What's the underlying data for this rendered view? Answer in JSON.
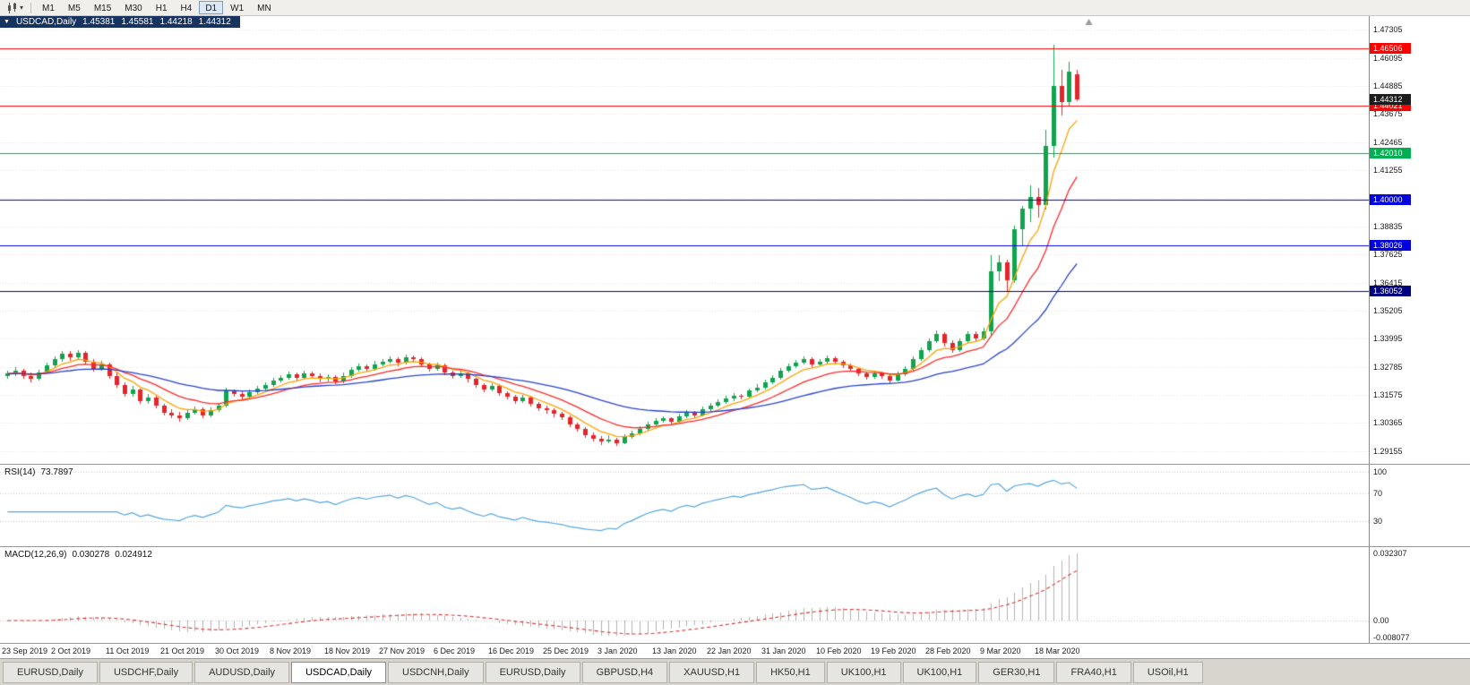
{
  "toolbar": {
    "timeframes": [
      "M1",
      "M5",
      "M15",
      "M30",
      "H1",
      "H4",
      "D1",
      "W1",
      "MN"
    ],
    "active_timeframe": "D1"
  },
  "chart": {
    "symbol_timeframe": "USDCAD,Daily",
    "ohlc": {
      "open": "1.45381",
      "high": "1.45581",
      "low": "1.44218",
      "close": "1.44312"
    }
  },
  "indicators": {
    "rsi": {
      "name": "RSI(14)",
      "value": "73.7897"
    },
    "macd": {
      "name": "MACD(12,26,9)",
      "main_value": "0.030278",
      "signal_value": "0.024912"
    }
  },
  "colors": {
    "up": "#12A34F",
    "down": "#E3262B",
    "grid": "#E4E4E4",
    "current_label_bg": "#1b1b1b",
    "axis_text": "#1a1a1a"
  },
  "tabs": {
    "active_index": 3,
    "items": [
      "EURUSD,Daily",
      "USDCHF,Daily",
      "AUDUSD,Daily",
      "USDCAD,Daily",
      "USDCNH,Daily",
      "EURUSD,Daily",
      "GBPUSD,H4",
      "XAUUSD,H1",
      "HK50,H1",
      "UK100,H1",
      "UK100,H1",
      "GER30,H1",
      "FRA40,H1",
      "USOil,H1"
    ]
  },
  "chart_data": {
    "type": "candlestick",
    "symbol": "USDCAD",
    "timeframe": "Daily",
    "current_price": "1.44312",
    "price_range": [
      1.286,
      1.479
    ],
    "right_offset_fraction": 0.787,
    "label_every": 7,
    "x_labels": [
      "23 Sep 2019",
      "2 Oct 2019",
      "11 Oct 2019",
      "21 Oct 2019",
      "30 Oct 2019",
      "8 Nov 2019",
      "18 Nov 2019",
      "27 Nov 2019",
      "6 Dec 2019",
      "16 Dec 2019",
      "25 Dec 2019",
      "3 Jan 2020",
      "13 Jan 2020",
      "22 Jan 2020",
      "31 Jan 2020",
      "10 Feb 2020",
      "19 Feb 2020",
      "28 Feb 2020",
      "9 Mar 2020",
      "18 Mar 2020"
    ],
    "price_axis_ticks": [
      "1.47305",
      "1.46095",
      "1.44885",
      "1.43675",
      "1.42465",
      "1.41255",
      "1.40045",
      "1.38835",
      "1.37625",
      "1.36415",
      "1.35205",
      "1.33995",
      "1.32785",
      "1.31575",
      "1.30365",
      "1.29155"
    ],
    "hlines": [
      {
        "value": 1.46506,
        "label": "1.46506",
        "color": "#FF0000"
      },
      {
        "value": 1.44021,
        "label": "1.44021",
        "color": "#FF0000"
      },
      {
        "value": 1.4201,
        "label": "1.42010",
        "color": "#00B050"
      },
      {
        "value": 1.4,
        "label": "1.40000",
        "color": "#0000E0"
      },
      {
        "value": 1.38026,
        "label": "1.38026",
        "color": "#0000E0"
      },
      {
        "value": 1.36052,
        "label": "1.36052",
        "color": "#000080"
      }
    ],
    "moving_averages": [
      {
        "name": "ma-fast",
        "period": 6,
        "color": "#FFA200"
      },
      {
        "name": "ma-mid",
        "period": 13,
        "color": "#FF2A2A"
      },
      {
        "name": "ma-slow",
        "period": 34,
        "color": "#2743D0"
      }
    ],
    "rsi": {
      "period": 14,
      "levels": [
        100,
        70,
        30
      ],
      "color": "#56A5DB",
      "scale_max": 105
    },
    "macd": {
      "fast": 12,
      "slow": 26,
      "signal": 9,
      "axis_labels": {
        "top": "0.032307",
        "zero": "0.00",
        "bottom": "-0.008077"
      },
      "histogram_color": "#B2B2B2",
      "signal_color": "#D83838"
    },
    "candles": [
      [
        1.324,
        1.3262,
        1.3228,
        1.3248
      ],
      [
        1.3248,
        1.3275,
        1.324,
        1.3262
      ],
      [
        1.3262,
        1.3268,
        1.3225,
        1.324
      ],
      [
        1.324,
        1.3252,
        1.3212,
        1.3228
      ],
      [
        1.3228,
        1.3266,
        1.322,
        1.3255
      ],
      [
        1.3255,
        1.3298,
        1.3248,
        1.3285
      ],
      [
        1.3285,
        1.3322,
        1.3278,
        1.331
      ],
      [
        1.331,
        1.3348,
        1.33,
        1.3335
      ],
      [
        1.3335,
        1.3345,
        1.3305,
        1.332
      ],
      [
        1.332,
        1.3352,
        1.331,
        1.334
      ],
      [
        1.334,
        1.3347,
        1.3288,
        1.33
      ],
      [
        1.33,
        1.3312,
        1.3258,
        1.327
      ],
      [
        1.327,
        1.3302,
        1.3262,
        1.329
      ],
      [
        1.329,
        1.3296,
        1.3228,
        1.324
      ],
      [
        1.324,
        1.3252,
        1.3188,
        1.32
      ],
      [
        1.32,
        1.3212,
        1.3148,
        1.316
      ],
      [
        1.316,
        1.3195,
        1.315,
        1.318
      ],
      [
        1.318,
        1.3186,
        1.3118,
        1.313
      ],
      [
        1.313,
        1.316,
        1.312,
        1.3145
      ],
      [
        1.3145,
        1.3152,
        1.3098,
        1.311
      ],
      [
        1.311,
        1.3118,
        1.3068,
        1.308
      ],
      [
        1.308,
        1.3095,
        1.3055,
        1.307
      ],
      [
        1.307,
        1.3082,
        1.3042,
        1.3055
      ],
      [
        1.3055,
        1.3092,
        1.3048,
        1.308
      ],
      [
        1.308,
        1.3108,
        1.3072,
        1.3095
      ],
      [
        1.3095,
        1.3102,
        1.3058,
        1.307
      ],
      [
        1.307,
        1.3102,
        1.3062,
        1.309
      ],
      [
        1.309,
        1.3122,
        1.3082,
        1.311
      ],
      [
        1.311,
        1.3188,
        1.3102,
        1.3175
      ],
      [
        1.3175,
        1.3182,
        1.3148,
        1.316
      ],
      [
        1.316,
        1.3172,
        1.3138,
        1.315
      ],
      [
        1.315,
        1.3182,
        1.3142,
        1.317
      ],
      [
        1.317,
        1.3196,
        1.3162,
        1.3185
      ],
      [
        1.3185,
        1.3212,
        1.3178,
        1.32
      ],
      [
        1.32,
        1.3232,
        1.3192,
        1.322
      ],
      [
        1.322,
        1.3242,
        1.3212,
        1.323
      ],
      [
        1.323,
        1.3256,
        1.3222,
        1.3245
      ],
      [
        1.3245,
        1.3252,
        1.3218,
        1.323
      ],
      [
        1.323,
        1.3262,
        1.3222,
        1.325
      ],
      [
        1.325,
        1.3256,
        1.3228,
        1.324
      ],
      [
        1.324,
        1.3248,
        1.3212,
        1.3225
      ],
      [
        1.3225,
        1.3246,
        1.3216,
        1.3235
      ],
      [
        1.3235,
        1.3242,
        1.3202,
        1.3215
      ],
      [
        1.3215,
        1.3252,
        1.3208,
        1.324
      ],
      [
        1.324,
        1.3276,
        1.3232,
        1.3265
      ],
      [
        1.3265,
        1.3292,
        1.3258,
        1.328
      ],
      [
        1.328,
        1.3288,
        1.3256,
        1.327
      ],
      [
        1.327,
        1.3302,
        1.3262,
        1.329
      ],
      [
        1.329,
        1.3312,
        1.3282,
        1.33
      ],
      [
        1.33,
        1.3322,
        1.3292,
        1.331
      ],
      [
        1.331,
        1.3318,
        1.3282,
        1.3295
      ],
      [
        1.3295,
        1.3332,
        1.3288,
        1.332
      ],
      [
        1.332,
        1.3328,
        1.3298,
        1.331
      ],
      [
        1.331,
        1.3318,
        1.3278,
        1.329
      ],
      [
        1.329,
        1.3298,
        1.3258,
        1.327
      ],
      [
        1.327,
        1.3298,
        1.3262,
        1.3285
      ],
      [
        1.3285,
        1.3292,
        1.3242,
        1.3255
      ],
      [
        1.3255,
        1.3262,
        1.3228,
        1.324
      ],
      [
        1.324,
        1.3262,
        1.3232,
        1.325
      ],
      [
        1.325,
        1.3256,
        1.3212,
        1.3225
      ],
      [
        1.3225,
        1.3232,
        1.3188,
        1.32
      ],
      [
        1.32,
        1.3208,
        1.3168,
        1.318
      ],
      [
        1.318,
        1.3208,
        1.3172,
        1.3195
      ],
      [
        1.3195,
        1.3202,
        1.3152,
        1.3165
      ],
      [
        1.3165,
        1.3172,
        1.3138,
        1.315
      ],
      [
        1.315,
        1.3158,
        1.3118,
        1.313
      ],
      [
        1.313,
        1.3158,
        1.3122,
        1.3145
      ],
      [
        1.3145,
        1.3152,
        1.3108,
        1.312
      ],
      [
        1.312,
        1.3128,
        1.3088,
        1.31
      ],
      [
        1.31,
        1.3112,
        1.3078,
        1.309
      ],
      [
        1.309,
        1.3098,
        1.3062,
        1.3075
      ],
      [
        1.3075,
        1.3082,
        1.3048,
        1.306
      ],
      [
        1.306,
        1.3068,
        1.3018,
        1.303
      ],
      [
        1.303,
        1.3038,
        1.2998,
        1.301
      ],
      [
        1.301,
        1.3018,
        1.2972,
        1.2985
      ],
      [
        1.2985,
        1.2995,
        1.2958,
        1.297
      ],
      [
        1.297,
        1.2978,
        1.2942,
        1.2955
      ],
      [
        1.2955,
        1.2982,
        1.2948,
        1.2965
      ],
      [
        1.2965,
        1.2972,
        1.2938,
        1.295
      ],
      [
        1.295,
        1.2988,
        1.2944,
        1.2975
      ],
      [
        1.2975,
        1.3002,
        1.2968,
        1.299
      ],
      [
        1.299,
        1.3022,
        1.2984,
        1.301
      ],
      [
        1.301,
        1.3042,
        1.3002,
        1.303
      ],
      [
        1.303,
        1.3056,
        1.3022,
        1.3045
      ],
      [
        1.3045,
        1.3066,
        1.3038,
        1.3055
      ],
      [
        1.3055,
        1.3062,
        1.3028,
        1.304
      ],
      [
        1.304,
        1.3076,
        1.3034,
        1.3065
      ],
      [
        1.3065,
        1.3092,
        1.3058,
        1.308
      ],
      [
        1.308,
        1.3088,
        1.3058,
        1.307
      ],
      [
        1.307,
        1.3106,
        1.3064,
        1.3095
      ],
      [
        1.3095,
        1.3122,
        1.3088,
        1.311
      ],
      [
        1.311,
        1.3136,
        1.3102,
        1.3125
      ],
      [
        1.3125,
        1.3152,
        1.3118,
        1.314
      ],
      [
        1.314,
        1.3166,
        1.3132,
        1.3155
      ],
      [
        1.3155,
        1.3162,
        1.3138,
        1.315
      ],
      [
        1.315,
        1.3186,
        1.3144,
        1.3175
      ],
      [
        1.3175,
        1.3202,
        1.3168,
        1.319
      ],
      [
        1.319,
        1.3222,
        1.3182,
        1.321
      ],
      [
        1.321,
        1.3242,
        1.3202,
        1.323
      ],
      [
        1.323,
        1.3272,
        1.3224,
        1.326
      ],
      [
        1.326,
        1.3292,
        1.3252,
        1.328
      ],
      [
        1.328,
        1.3308,
        1.3272,
        1.3295
      ],
      [
        1.3295,
        1.3322,
        1.3288,
        1.331
      ],
      [
        1.331,
        1.3318,
        1.3278,
        1.329
      ],
      [
        1.329,
        1.3312,
        1.3282,
        1.33
      ],
      [
        1.33,
        1.3328,
        1.3292,
        1.3315
      ],
      [
        1.3315,
        1.3322,
        1.3288,
        1.33
      ],
      [
        1.33,
        1.3308,
        1.3272,
        1.3285
      ],
      [
        1.3285,
        1.3292,
        1.3258,
        1.327
      ],
      [
        1.327,
        1.3278,
        1.3238,
        1.325
      ],
      [
        1.325,
        1.3258,
        1.3222,
        1.3235
      ],
      [
        1.3235,
        1.3262,
        1.3228,
        1.325
      ],
      [
        1.325,
        1.3256,
        1.3228,
        1.324
      ],
      [
        1.324,
        1.3248,
        1.3208,
        1.322
      ],
      [
        1.322,
        1.3256,
        1.3214,
        1.3245
      ],
      [
        1.3245,
        1.3282,
        1.3238,
        1.327
      ],
      [
        1.327,
        1.3322,
        1.3262,
        1.331
      ],
      [
        1.331,
        1.3362,
        1.3302,
        1.335
      ],
      [
        1.335,
        1.3402,
        1.3342,
        1.339
      ],
      [
        1.339,
        1.3436,
        1.338,
        1.342
      ],
      [
        1.342,
        1.3428,
        1.3366,
        1.338
      ],
      [
        1.338,
        1.3392,
        1.3338,
        1.335
      ],
      [
        1.335,
        1.3402,
        1.3342,
        1.339
      ],
      [
        1.339,
        1.3432,
        1.3382,
        1.342
      ],
      [
        1.342,
        1.343,
        1.3386,
        1.34
      ],
      [
        1.34,
        1.3445,
        1.3392,
        1.343
      ],
      [
        1.343,
        1.3758,
        1.3412,
        1.369
      ],
      [
        1.369,
        1.376,
        1.3648,
        1.373
      ],
      [
        1.373,
        1.3742,
        1.3602,
        1.365
      ],
      [
        1.365,
        1.3885,
        1.3638,
        1.387
      ],
      [
        1.387,
        1.3972,
        1.3802,
        1.396
      ],
      [
        1.396,
        1.406,
        1.3902,
        1.401
      ],
      [
        1.401,
        1.4048,
        1.3922,
        1.3975
      ],
      [
        1.3975,
        1.4298,
        1.3958,
        1.423
      ],
      [
        1.423,
        1.4668,
        1.418,
        1.449
      ],
      [
        1.449,
        1.456,
        1.436,
        1.442
      ],
      [
        1.442,
        1.4592,
        1.4402,
        1.455
      ],
      [
        1.45381,
        1.45581,
        1.44218,
        1.44312
      ]
    ]
  }
}
